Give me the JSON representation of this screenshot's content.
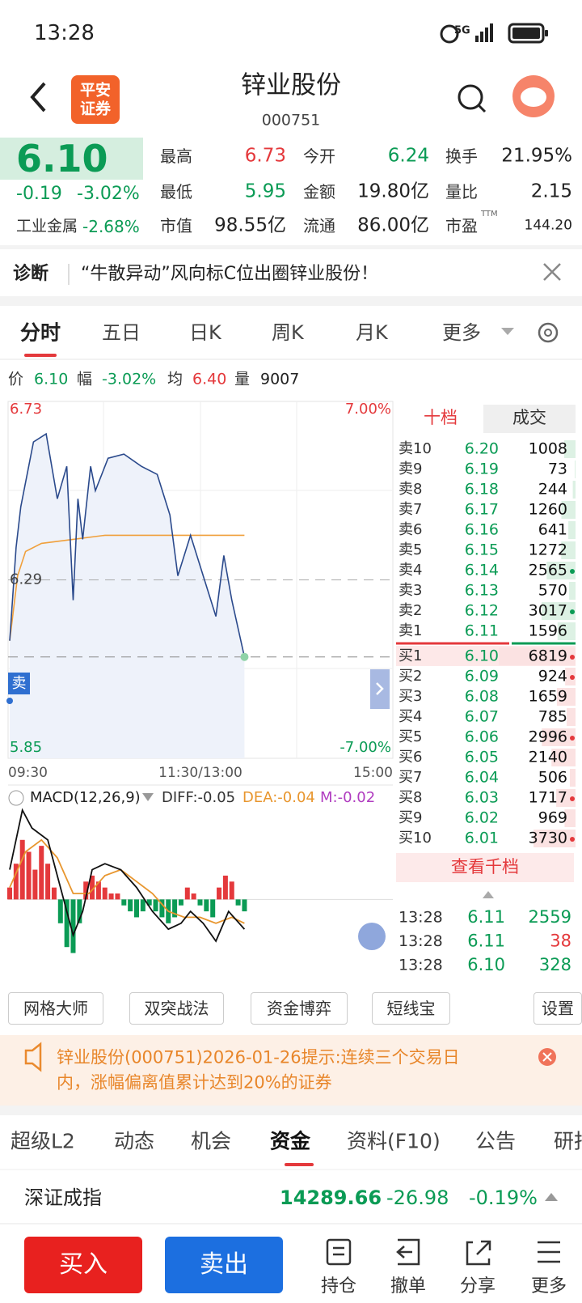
{
  "status_bar": {
    "time": "13:28",
    "network": "5G"
  },
  "header": {
    "logo": [
      "平安",
      "证券"
    ],
    "title": "锌业股份",
    "code": "000751"
  },
  "quote": {
    "price": "6.10",
    "change": "-0.19",
    "change_pct": "-3.02%",
    "sector": "工业金属",
    "sector_pct": "-2.68%"
  },
  "stats": [
    {
      "label": "最高",
      "value": "6.73",
      "color": "#e4393c"
    },
    {
      "label": "今开",
      "value": "6.24",
      "color": "#0b9b55"
    },
    {
      "label": "换手",
      "value": "21.95%",
      "color": "#222222"
    },
    {
      "label": "最低",
      "value": "5.95",
      "color": "#0b9b55"
    },
    {
      "label": "金额",
      "value": "19.80亿",
      "color": "#222222"
    },
    {
      "label": "量比",
      "value": "2.15",
      "color": "#222222"
    },
    {
      "label": "市值",
      "value": "98.55亿",
      "color": "#222222"
    },
    {
      "label": "流通",
      "value": "86.00亿",
      "color": "#222222"
    },
    {
      "label": "市盈",
      "value": "144.20",
      "color": "#222222",
      "superscript": "TTM"
    }
  ],
  "diagnosis": {
    "label": "诊断",
    "text": "“牛散异动”风向标C位出圈锌业股份！"
  },
  "tabs": [
    "分时",
    "五日",
    "日K",
    "周K",
    "月K",
    "更多"
  ],
  "info": [
    {
      "label": "价",
      "value": "6.10",
      "color": "#0b9b55"
    },
    {
      "label": "幅",
      "value": "-3.02%",
      "color": "#0b9b55"
    },
    {
      "label": "均",
      "value": "6.40",
      "color": "#e4393c"
    },
    {
      "label": "量",
      "value": "9007",
      "color": "#222222"
    }
  ],
  "intraday": {
    "ylim": [
      5.85,
      6.73
    ],
    "prev_close": 6.29,
    "pct_labels": [
      "-7.00%",
      "7.00%"
    ],
    "xlim": [
      0,
      240
    ],
    "time_labels": [
      "09:30",
      "11:30/13:00",
      "15:00"
    ],
    "badge": "卖",
    "minutes": [
      0,
      4,
      7,
      15,
      23,
      30,
      36,
      40,
      43,
      46,
      51,
      54,
      62,
      72,
      83,
      93,
      101,
      106,
      114,
      122,
      130,
      135,
      140,
      148
    ],
    "price": [
      6.14,
      6.37,
      6.47,
      6.63,
      6.65,
      6.49,
      6.57,
      6.24,
      6.49,
      6.39,
      6.57,
      6.51,
      6.59,
      6.6,
      6.57,
      6.55,
      6.45,
      6.3,
      6.4,
      6.3,
      6.2,
      6.35,
      6.24,
      6.1
    ],
    "avg_minutes": [
      0,
      5,
      10,
      20,
      40,
      60,
      148
    ],
    "avg": [
      6.14,
      6.3,
      6.36,
      6.38,
      6.39,
      6.4,
      6.4
    ]
  },
  "macd": {
    "label": "MACD(12,26,9)",
    "diff_label": "DIFF:-0.05",
    "dea_label": "DEA:-0.04",
    "m_label": "M:-0.02",
    "ylim": [
      -0.13,
      0.15
    ],
    "minutes": [
      0,
      4,
      8,
      12,
      16,
      20,
      24,
      28,
      32,
      36,
      40,
      44,
      48,
      52,
      56,
      60,
      64,
      68,
      72,
      76,
      80,
      84,
      88,
      92,
      96,
      100,
      104,
      108,
      112,
      116,
      120,
      124,
      128,
      132,
      136,
      140,
      144,
      148
    ],
    "hist": [
      0.02,
      0.06,
      0.1,
      0.08,
      0.05,
      0.09,
      0.06,
      0.02,
      -0.04,
      -0.08,
      -0.09,
      -0.04,
      0.03,
      0.04,
      0.03,
      0.02,
      0.01,
      0.01,
      -0.01,
      -0.02,
      -0.03,
      -0.02,
      -0.01,
      -0.02,
      -0.03,
      -0.04,
      -0.03,
      -0.01,
      0.02,
      0.01,
      -0.01,
      -0.02,
      -0.03,
      0.02,
      0.04,
      0.03,
      -0.01,
      -0.02
    ],
    "diff_minutes": [
      0,
      8,
      14,
      24,
      32,
      40,
      46,
      52,
      60,
      70,
      80,
      90,
      100,
      108,
      114,
      122,
      130,
      138,
      148
    ],
    "diff": [
      0.05,
      0.15,
      0.12,
      0.1,
      0.02,
      -0.06,
      -0.02,
      0.05,
      0.06,
      0.05,
      0.02,
      -0.02,
      -0.05,
      -0.04,
      -0.02,
      -0.04,
      -0.07,
      -0.02,
      -0.05
    ],
    "dea_minutes": [
      0,
      10,
      20,
      30,
      40,
      50,
      60,
      70,
      80,
      90,
      100,
      110,
      120,
      130,
      140,
      148
    ],
    "dea": [
      0.02,
      0.08,
      0.1,
      0.07,
      0.01,
      0.01,
      0.04,
      0.05,
      0.03,
      0.01,
      -0.02,
      -0.03,
      -0.03,
      -0.04,
      -0.03,
      -0.04
    ]
  },
  "order_book": {
    "tabs": [
      "十档",
      "成交"
    ],
    "asks": [
      {
        "label": "卖10",
        "price": "6.20",
        "volume": 1008,
        "dot": false
      },
      {
        "label": "卖9",
        "price": "6.19",
        "volume": 73,
        "dot": false
      },
      {
        "label": "卖8",
        "price": "6.18",
        "volume": 244,
        "dot": false
      },
      {
        "label": "卖7",
        "price": "6.17",
        "volume": 1260,
        "dot": false
      },
      {
        "label": "卖6",
        "price": "6.16",
        "volume": 641,
        "dot": false
      },
      {
        "label": "卖5",
        "price": "6.15",
        "volume": 1272,
        "dot": false
      },
      {
        "label": "卖4",
        "price": "6.14",
        "volume": 2565,
        "dot": true
      },
      {
        "label": "卖3",
        "price": "6.13",
        "volume": 570,
        "dot": false
      },
      {
        "label": "卖2",
        "price": "6.12",
        "volume": 3017,
        "dot": true
      },
      {
        "label": "卖1",
        "price": "6.11",
        "volume": 1596,
        "dot": false
      }
    ],
    "bids": [
      {
        "label": "买1",
        "price": "6.10",
        "volume": 6819,
        "dot": true
      },
      {
        "label": "买2",
        "price": "6.09",
        "volume": 924,
        "dot": true
      },
      {
        "label": "买3",
        "price": "6.08",
        "volume": 1659,
        "dot": false
      },
      {
        "label": "买4",
        "price": "6.07",
        "volume": 785,
        "dot": false
      },
      {
        "label": "买5",
        "price": "6.06",
        "volume": 2996,
        "dot": true
      },
      {
        "label": "买6",
        "price": "6.05",
        "volume": 2140,
        "dot": false
      },
      {
        "label": "买7",
        "price": "6.04",
        "volume": 506,
        "dot": false
      },
      {
        "label": "买8",
        "price": "6.03",
        "volume": 1717,
        "dot": true
      },
      {
        "label": "买9",
        "price": "6.02",
        "volume": 969,
        "dot": false
      },
      {
        "label": "买10",
        "price": "6.01",
        "volume": 3730,
        "dot": true
      }
    ],
    "more": "查看千档",
    "trades": [
      {
        "time": "13:28",
        "price": "6.11",
        "volume": "2559",
        "color": "#0b9b55"
      },
      {
        "time": "13:28",
        "price": "6.11",
        "volume": "38",
        "color": "#e4393c"
      },
      {
        "time": "13:28",
        "price": "6.10",
        "volume": "328",
        "color": "#0b9b55"
      }
    ]
  },
  "tools": [
    "网格大师",
    "双突战法",
    "资金博弈",
    "短线宝",
    "设置"
  ],
  "notice": {
    "lines": [
      "锌业股份(000751)2026-01-26提示:连续三个交易日",
      "内，涨幅偏离值累计达到20%的证券"
    ]
  },
  "bottom_tabs": [
    "超级L2",
    "动态",
    "机会",
    "资金",
    "资料(F10)",
    "公告",
    "研报"
  ],
  "index": {
    "name": "深证成指",
    "value": "14289.66",
    "change": "-26.98",
    "change_pct": "-0.19%"
  },
  "nav": {
    "buy": "买入",
    "sell": "卖出",
    "items": [
      "持仓",
      "撤单",
      "分享",
      "更多"
    ]
  }
}
